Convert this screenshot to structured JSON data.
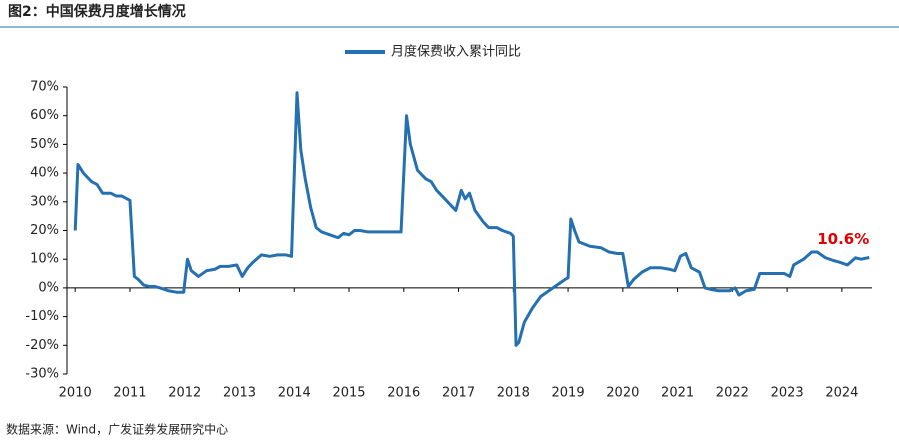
{
  "chart_data": {
    "type": "line",
    "title": "图2：中国保费月度增长情况",
    "source": "数据来源：Wind，广发证券发展研究中心",
    "x": [
      2010.0,
      2010.05,
      2010.15,
      2010.3,
      2010.4,
      2010.5,
      2010.65,
      2010.75,
      2010.85,
      2010.95,
      2011.0,
      2011.08,
      2011.15,
      2011.25,
      2011.35,
      2011.45,
      2011.55,
      2011.7,
      2011.85,
      2011.98,
      2012.05,
      2012.12,
      2012.25,
      2012.4,
      2012.55,
      2012.65,
      2012.8,
      2012.95,
      2013.05,
      2013.15,
      2013.25,
      2013.4,
      2013.55,
      2013.7,
      2013.85,
      2013.95,
      2014.05,
      2014.12,
      2014.2,
      2014.3,
      2014.4,
      2014.5,
      2014.65,
      2014.8,
      2014.9,
      2015.0,
      2015.1,
      2015.2,
      2015.35,
      2015.5,
      2015.7,
      2015.95,
      2016.05,
      2016.12,
      2016.25,
      2016.4,
      2016.5,
      2016.6,
      2016.75,
      2016.85,
      2016.95,
      2017.05,
      2017.12,
      2017.2,
      2017.3,
      2017.45,
      2017.55,
      2017.7,
      2017.8,
      2017.95,
      2018.0,
      2018.05,
      2018.1,
      2018.2,
      2018.35,
      2018.5,
      2018.65,
      2018.8,
      2018.95,
      2019.0,
      2019.05,
      2019.12,
      2019.2,
      2019.4,
      2019.6,
      2019.75,
      2019.9,
      2020.0,
      2020.1,
      2020.2,
      2020.35,
      2020.5,
      2020.7,
      2020.85,
      2020.95,
      2021.05,
      2021.15,
      2021.25,
      2021.4,
      2021.5,
      2021.6,
      2021.75,
      2021.95,
      2022.05,
      2022.12,
      2022.25,
      2022.4,
      2022.5,
      2022.6,
      2022.75,
      2022.95,
      2023.05,
      2023.12,
      2023.3,
      2023.45,
      2023.55,
      2023.7,
      2023.85,
      2023.95,
      2024.1,
      2024.25,
      2024.35,
      2024.5
    ],
    "series": [
      {
        "name": "月度保费收入累计同比",
        "color": "#2470b0",
        "values": [
          20,
          43,
          40,
          37,
          36,
          33,
          33,
          32,
          32,
          31,
          30.5,
          4,
          3,
          1,
          0.5,
          0.5,
          0,
          -1,
          -1.5,
          -1.5,
          10,
          6,
          4,
          6,
          6.5,
          7.5,
          7.5,
          8,
          4,
          7,
          9,
          11.5,
          11,
          11.5,
          11.5,
          11,
          68,
          48,
          38,
          28,
          21,
          19.5,
          18.5,
          17.5,
          19,
          18.5,
          20,
          20,
          19.5,
          19.5,
          19.5,
          19.5,
          60,
          50,
          41,
          38,
          37,
          34,
          31,
          29,
          27,
          34,
          31,
          33,
          27,
          23,
          21,
          21,
          20,
          19,
          18,
          -20,
          -19,
          -12,
          -7,
          -3,
          -1,
          1,
          3,
          3.5,
          24,
          20,
          16,
          14.5,
          14,
          12.5,
          12,
          12,
          0.5,
          3,
          5.5,
          7,
          7,
          6.5,
          6,
          11,
          12,
          7,
          5.5,
          0,
          -0.5,
          -1,
          -1,
          0,
          -2.5,
          -1,
          -0.5,
          5,
          5,
          5,
          5,
          4,
          8,
          10,
          12.5,
          12.5,
          10.5,
          9.5,
          9,
          8,
          10.5,
          10,
          10.6
        ]
      }
    ],
    "annotations": [
      {
        "text": "10.6%",
        "x": 2024.5,
        "y": 10.6,
        "color": "#e00000"
      }
    ],
    "xlim": [
      2009.85,
      2024.55
    ],
    "xticks": [
      2010,
      2011,
      2012,
      2013,
      2014,
      2015,
      2016,
      2017,
      2018,
      2019,
      2020,
      2021,
      2022,
      2023,
      2024
    ],
    "ylim": [
      -30,
      70
    ],
    "yticks": [
      {
        "value": -30,
        "label": "-30%"
      },
      {
        "value": -20,
        "label": "-20%"
      },
      {
        "value": -10,
        "label": "-10%"
      },
      {
        "value": 0,
        "label": "0%"
      },
      {
        "value": 10,
        "label": "10%"
      },
      {
        "value": 20,
        "label": "20%"
      },
      {
        "value": 30,
        "label": "30%"
      },
      {
        "value": 40,
        "label": "40%"
      },
      {
        "value": 50,
        "label": "50%"
      },
      {
        "value": 60,
        "label": "60%"
      },
      {
        "value": 70,
        "label": "70%"
      }
    ],
    "grid": false
  }
}
